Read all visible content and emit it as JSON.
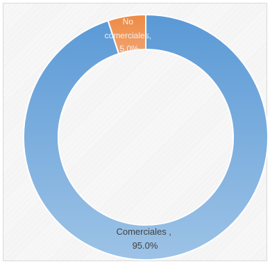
{
  "chart_data": {
    "type": "pie",
    "style": "doughnut",
    "slices": [
      {
        "label": "Comerciales",
        "value": 95.0,
        "color": "#5b9bd5",
        "label_lines": [
          "Comerciales ,",
          "95.0%"
        ]
      },
      {
        "label": "No comerciales",
        "value": 5.0,
        "color": "#ed7d31",
        "label_lines": [
          "No",
          "comerciales,",
          "5.0%"
        ]
      }
    ],
    "unit": "%",
    "legend": "none"
  }
}
